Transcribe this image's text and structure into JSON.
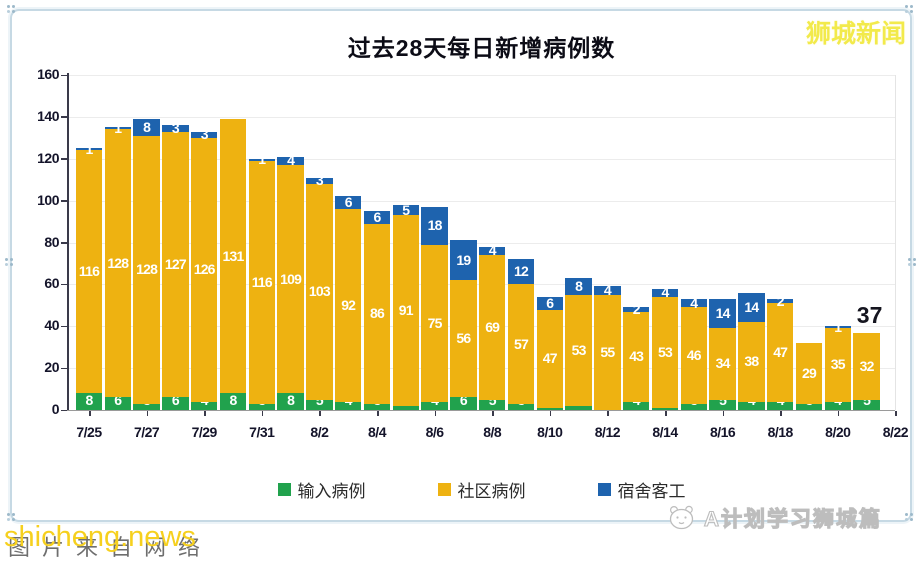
{
  "frame": {
    "brand": "狮城新闻",
    "watermark_gray": "图片来自网络",
    "watermark_yellow": "shicheng.news",
    "watermark_right": "A计划学习狮城篇"
  },
  "chart_data": {
    "type": "bar",
    "stacked": true,
    "title": "过去28天每日新增病例数",
    "xlabel": "",
    "ylabel": "",
    "ylim": [
      0,
      160
    ],
    "yticks": [
      0,
      20,
      40,
      60,
      80,
      100,
      120,
      140,
      160
    ],
    "grid": "horizontal-light",
    "legend_position": "bottom",
    "categories": [
      "7/25",
      "7/26",
      "7/27",
      "7/28",
      "7/29",
      "7/30",
      "7/31",
      "8/1",
      "8/2",
      "8/3",
      "8/4",
      "8/5",
      "8/6",
      "8/7",
      "8/8",
      "8/9",
      "8/10",
      "8/11",
      "8/12",
      "8/13",
      "8/14",
      "8/15",
      "8/16",
      "8/17",
      "8/18",
      "8/19",
      "8/20",
      "8/21"
    ],
    "xtick_labels": [
      "7/25",
      "7/27",
      "7/29",
      "7/31",
      "8/2",
      "8/4",
      "8/6",
      "8/8",
      "8/10",
      "8/12",
      "8/14",
      "8/16",
      "8/18",
      "8/20",
      "8/22"
    ],
    "series": [
      {
        "name": "输入病例",
        "color": "#21a24d",
        "values": [
          8,
          6,
          3,
          6,
          4,
          8,
          3,
          8,
          5,
          4,
          3,
          2,
          4,
          6,
          5,
          3,
          1,
          2,
          0,
          4,
          1,
          3,
          5,
          4,
          4,
          3,
          4,
          5
        ]
      },
      {
        "name": "社区病例",
        "color": "#eeb211",
        "values": [
          116,
          128,
          128,
          127,
          126,
          131,
          116,
          109,
          103,
          92,
          86,
          91,
          75,
          56,
          69,
          57,
          47,
          53,
          55,
          43,
          53,
          46,
          34,
          38,
          47,
          29,
          35,
          32
        ]
      },
      {
        "name": "宿舍客工",
        "color": "#1e63ae",
        "values": [
          1,
          1,
          8,
          3,
          3,
          0,
          1,
          4,
          3,
          6,
          6,
          5,
          18,
          19,
          4,
          12,
          6,
          8,
          4,
          2,
          4,
          4,
          14,
          14,
          2,
          0,
          1,
          0
        ]
      }
    ],
    "totals": [
      125,
      135,
      139,
      136,
      133,
      139,
      120,
      121,
      111,
      102,
      95,
      98,
      97,
      81,
      78,
      72,
      54,
      63,
      59,
      49,
      58,
      53,
      53,
      56,
      53,
      32,
      40,
      37
    ],
    "annotation": {
      "text": "37",
      "bar_index": 27
    }
  }
}
